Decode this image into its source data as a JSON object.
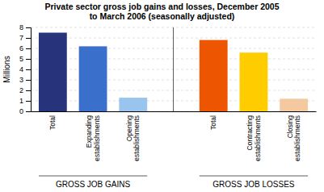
{
  "chart_data": {
    "type": "bar",
    "title": "Private sector gross job gains and losses, December 2005\nto March 2006 (seasonally adjusted)",
    "categories": [
      "Total",
      "Expanding\nestablishments",
      "Opening\nestablishments",
      "Total",
      "Contracting\nestablishments",
      "Closing\nestablishments"
    ],
    "values": [
      7.5,
      6.2,
      1.3,
      6.8,
      5.6,
      1.2
    ],
    "colors": [
      "#27337A",
      "#3A6FCC",
      "#99C4EE",
      "#EE5500",
      "#FFCC00",
      "#F5C9A0"
    ],
    "annotations": [
      "GROSS JOB GAINS",
      "GROSS JOB LOSSES"
    ],
    "ylabel": "Millions",
    "ylim": [
      0,
      8
    ],
    "yticks": [
      0,
      1,
      2,
      3,
      4,
      5,
      6,
      7,
      8
    ],
    "grid": true
  }
}
